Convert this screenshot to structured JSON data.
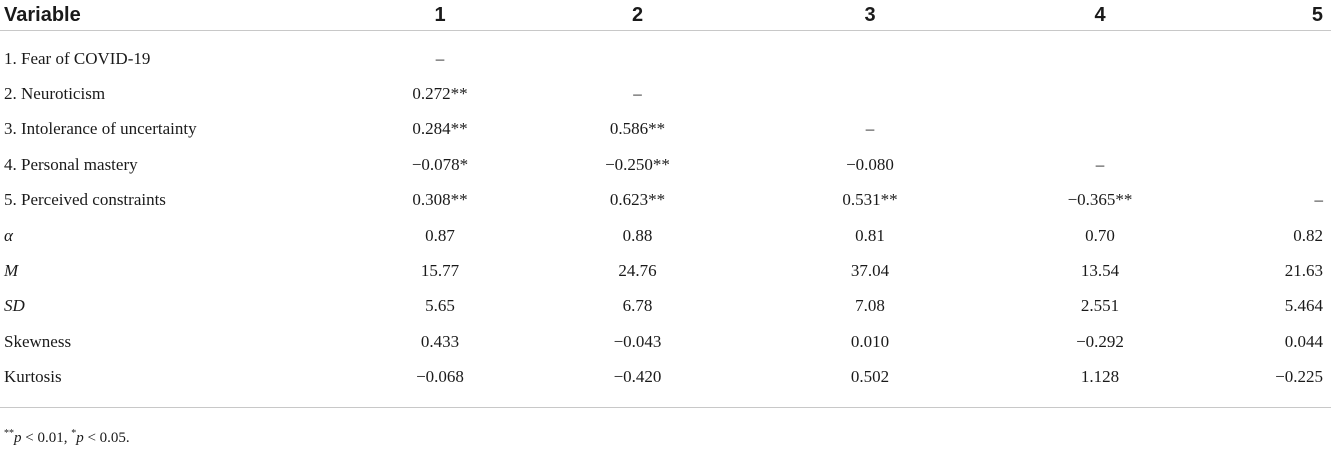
{
  "header": {
    "variable": "Variable",
    "cols": [
      "1",
      "2",
      "3",
      "4",
      "5"
    ]
  },
  "rows": [
    {
      "label": "1. Fear of COVID-19",
      "italic": false,
      "cells": [
        "–",
        "",
        "",
        "",
        ""
      ]
    },
    {
      "label": "2. Neuroticism",
      "italic": false,
      "cells": [
        "0.272**",
        "–",
        "",
        "",
        ""
      ]
    },
    {
      "label": "3. Intolerance of uncertainty",
      "italic": false,
      "cells": [
        "0.284**",
        "0.586**",
        "–",
        "",
        ""
      ]
    },
    {
      "label": "4. Personal mastery",
      "italic": false,
      "cells": [
        "−0.078*",
        "−0.250**",
        "−0.080",
        "–",
        ""
      ]
    },
    {
      "label": "5. Perceived constraints",
      "italic": false,
      "cells": [
        "0.308**",
        "0.623**",
        "0.531**",
        "−0.365**",
        "–"
      ]
    },
    {
      "label": "α",
      "italic": true,
      "cells": [
        "0.87",
        "0.88",
        "0.81",
        "0.70",
        "0.82"
      ]
    },
    {
      "label": "M",
      "italic": true,
      "cells": [
        "15.77",
        "24.76",
        "37.04",
        "13.54",
        "21.63"
      ]
    },
    {
      "label": "SD",
      "italic": true,
      "cells": [
        "5.65",
        "6.78",
        "7.08",
        "2.551",
        "5.464"
      ]
    },
    {
      "label": "Skewness",
      "italic": false,
      "cells": [
        "0.433",
        "−0.043",
        "0.010",
        "−0.292",
        "0.044"
      ]
    },
    {
      "label": "Kurtosis",
      "italic": false,
      "cells": [
        "−0.068",
        "−0.420",
        "0.502",
        "1.128",
        "−0.225"
      ]
    }
  ],
  "footnote": {
    "sig1_mark": "**",
    "sig1_p": "p",
    "sig1_rest": " < 0.01, ",
    "sig2_mark": "*",
    "sig2_p": "p",
    "sig2_rest": " < 0.05."
  }
}
